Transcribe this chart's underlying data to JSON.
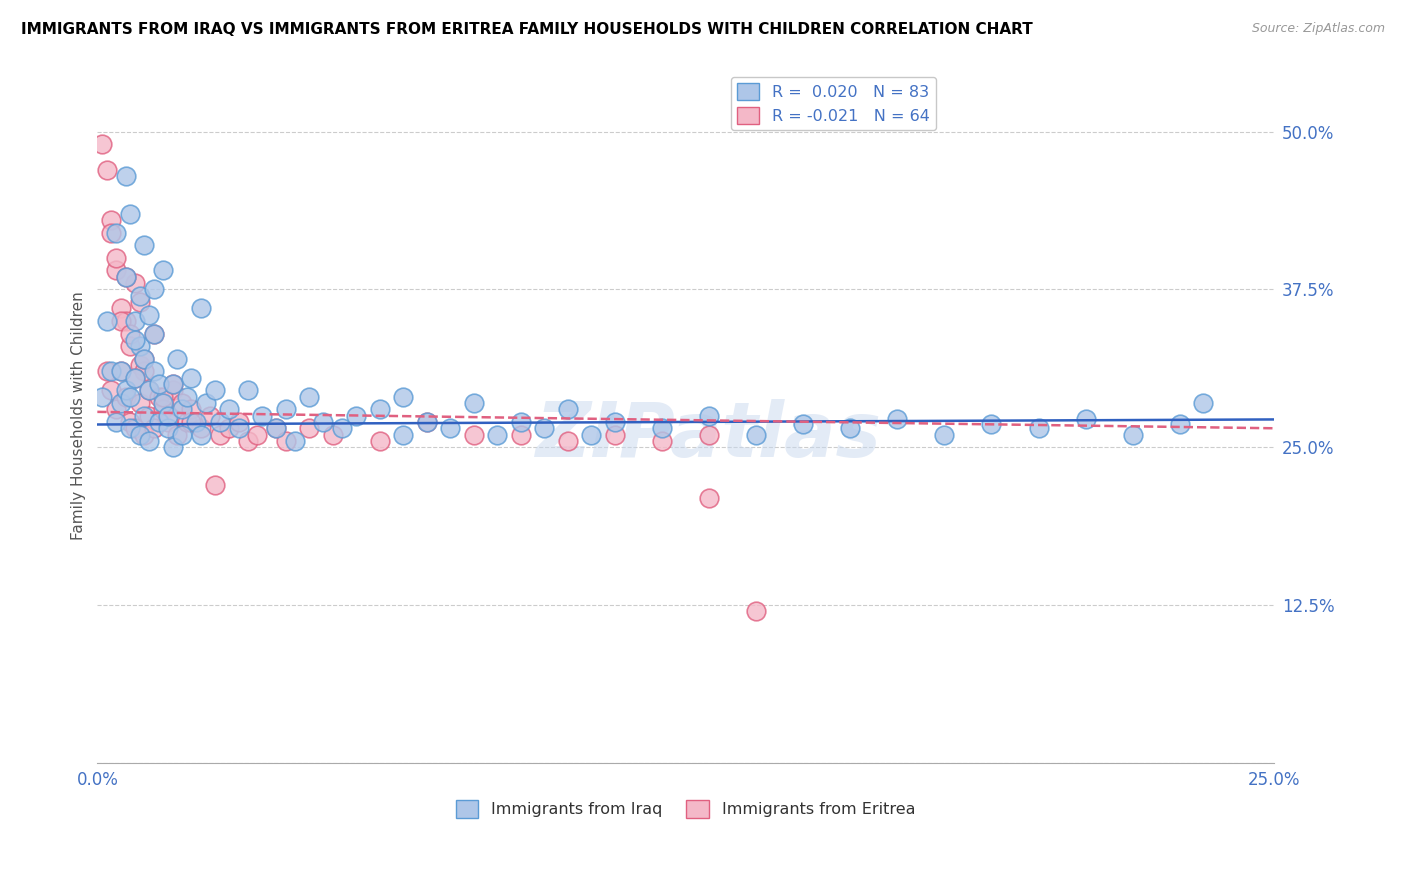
{
  "title": "IMMIGRANTS FROM IRAQ VS IMMIGRANTS FROM ERITREA FAMILY HOUSEHOLDS WITH CHILDREN CORRELATION CHART",
  "source": "Source: ZipAtlas.com",
  "ylabel": "Family Households with Children",
  "xlim": [
    0.0,
    0.25
  ],
  "ylim": [
    0.0,
    0.55
  ],
  "xtick_positions": [
    0.0,
    0.05,
    0.1,
    0.15,
    0.2,
    0.25
  ],
  "xtick_labels": [
    "0.0%",
    "",
    "",
    "",
    "",
    "25.0%"
  ],
  "ytick_vals": [
    0.5,
    0.375,
    0.25,
    0.125,
    0.0
  ],
  "ytick_labels_right": [
    "50.0%",
    "37.5%",
    "25.0%",
    "12.5%",
    ""
  ],
  "iraq_R": 0.02,
  "iraq_N": 83,
  "eritrea_R": -0.021,
  "eritrea_N": 64,
  "iraq_color": "#aec6e8",
  "iraq_edge_color": "#5b9bd5",
  "eritrea_color": "#f4b8c8",
  "eritrea_edge_color": "#e06080",
  "iraq_line_color": "#3060c0",
  "eritrea_line_color": "#e06080",
  "legend_label_iraq": "Immigrants from Iraq",
  "legend_label_eritrea": "Immigrants from Eritrea",
  "watermark": "ZIPatlas",
  "iraq_x": [
    0.001,
    0.002,
    0.003,
    0.004,
    0.004,
    0.005,
    0.005,
    0.006,
    0.006,
    0.007,
    0.007,
    0.008,
    0.008,
    0.009,
    0.009,
    0.01,
    0.01,
    0.011,
    0.011,
    0.012,
    0.012,
    0.013,
    0.013,
    0.014,
    0.014,
    0.015,
    0.015,
    0.016,
    0.016,
    0.017,
    0.018,
    0.018,
    0.019,
    0.02,
    0.021,
    0.022,
    0.023,
    0.025,
    0.026,
    0.028,
    0.03,
    0.032,
    0.035,
    0.038,
    0.04,
    0.042,
    0.045,
    0.048,
    0.052,
    0.055,
    0.06,
    0.065,
    0.07,
    0.075,
    0.08,
    0.085,
    0.09,
    0.095,
    0.1,
    0.105,
    0.11,
    0.12,
    0.13,
    0.14,
    0.15,
    0.16,
    0.17,
    0.18,
    0.19,
    0.2,
    0.21,
    0.22,
    0.23,
    0.235,
    0.006,
    0.007,
    0.008,
    0.009,
    0.01,
    0.011,
    0.012,
    0.022,
    0.065
  ],
  "iraq_y": [
    0.29,
    0.35,
    0.31,
    0.27,
    0.42,
    0.285,
    0.31,
    0.295,
    0.385,
    0.29,
    0.265,
    0.305,
    0.35,
    0.33,
    0.26,
    0.275,
    0.32,
    0.295,
    0.255,
    0.31,
    0.34,
    0.27,
    0.3,
    0.285,
    0.39,
    0.265,
    0.275,
    0.3,
    0.25,
    0.32,
    0.28,
    0.26,
    0.29,
    0.305,
    0.27,
    0.26,
    0.285,
    0.295,
    0.27,
    0.28,
    0.265,
    0.295,
    0.275,
    0.265,
    0.28,
    0.255,
    0.29,
    0.27,
    0.265,
    0.275,
    0.28,
    0.26,
    0.27,
    0.265,
    0.285,
    0.26,
    0.27,
    0.265,
    0.28,
    0.26,
    0.27,
    0.265,
    0.275,
    0.26,
    0.268,
    0.265,
    0.272,
    0.26,
    0.268,
    0.265,
    0.272,
    0.26,
    0.268,
    0.285,
    0.465,
    0.435,
    0.335,
    0.37,
    0.41,
    0.355,
    0.375,
    0.36,
    0.29
  ],
  "eritrea_x": [
    0.001,
    0.002,
    0.002,
    0.003,
    0.003,
    0.004,
    0.004,
    0.005,
    0.005,
    0.006,
    0.006,
    0.007,
    0.007,
    0.008,
    0.008,
    0.009,
    0.009,
    0.01,
    0.01,
    0.011,
    0.011,
    0.012,
    0.013,
    0.014,
    0.015,
    0.016,
    0.017,
    0.018,
    0.019,
    0.02,
    0.022,
    0.024,
    0.026,
    0.028,
    0.03,
    0.032,
    0.034,
    0.038,
    0.04,
    0.045,
    0.05,
    0.06,
    0.07,
    0.08,
    0.09,
    0.1,
    0.11,
    0.12,
    0.13,
    0.14,
    0.003,
    0.004,
    0.005,
    0.006,
    0.007,
    0.008,
    0.009,
    0.01,
    0.012,
    0.014,
    0.016,
    0.02,
    0.025,
    0.13
  ],
  "eritrea_y": [
    0.49,
    0.47,
    0.31,
    0.43,
    0.295,
    0.39,
    0.28,
    0.36,
    0.31,
    0.35,
    0.29,
    0.33,
    0.27,
    0.38,
    0.265,
    0.315,
    0.285,
    0.26,
    0.31,
    0.275,
    0.295,
    0.265,
    0.29,
    0.28,
    0.27,
    0.295,
    0.26,
    0.285,
    0.27,
    0.28,
    0.265,
    0.275,
    0.26,
    0.265,
    0.27,
    0.255,
    0.26,
    0.265,
    0.255,
    0.265,
    0.26,
    0.255,
    0.27,
    0.26,
    0.26,
    0.255,
    0.26,
    0.255,
    0.26,
    0.12,
    0.42,
    0.4,
    0.35,
    0.385,
    0.34,
    0.305,
    0.365,
    0.32,
    0.34,
    0.29,
    0.3,
    0.27,
    0.22,
    0.21
  ],
  "iraq_line_y0": 0.268,
  "iraq_line_y1": 0.272,
  "eritrea_line_y0": 0.278,
  "eritrea_line_y1": 0.265
}
